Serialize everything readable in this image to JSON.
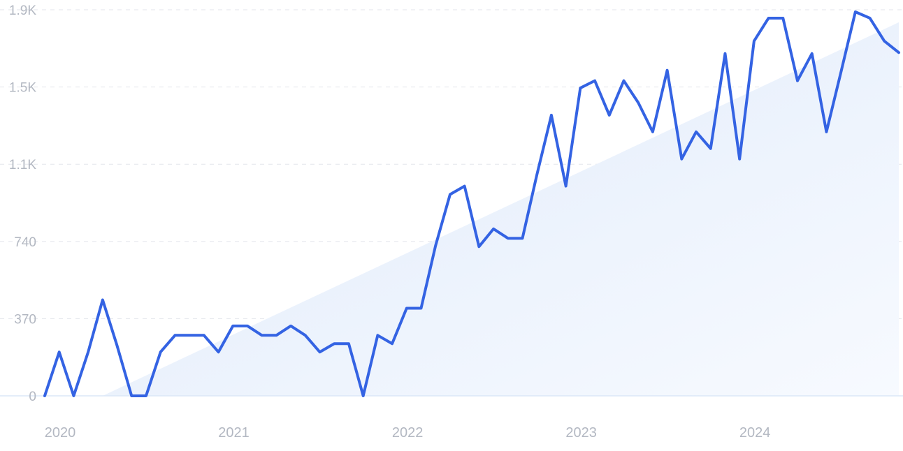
{
  "chart_data": {
    "type": "line",
    "title": "",
    "xlabel": "",
    "ylabel": "",
    "ylim": [
      0,
      1850
    ],
    "y_ticks": [
      {
        "value": 0,
        "label": "0"
      },
      {
        "value": 370,
        "label": "370"
      },
      {
        "value": 740,
        "label": "740"
      },
      {
        "value": 1110,
        "label": "1.1K"
      },
      {
        "value": 1480,
        "label": "1.5K"
      },
      {
        "value": 1850,
        "label": "1.9K"
      }
    ],
    "x_ticks": [
      "2020",
      "2021",
      "2022",
      "2023",
      "2024"
    ],
    "grid": "horizontal dashed",
    "x": [
      "2020-01",
      "2020-02",
      "2020-03",
      "2020-04",
      "2020-05",
      "2020-06",
      "2020-07",
      "2020-08",
      "2020-09",
      "2020-10",
      "2020-11",
      "2020-12",
      "2021-01",
      "2021-02",
      "2021-03",
      "2021-04",
      "2021-05",
      "2021-06",
      "2021-07",
      "2021-08",
      "2021-09",
      "2021-10",
      "2021-11",
      "2021-12",
      "2022-01",
      "2022-02",
      "2022-03",
      "2022-04",
      "2022-05",
      "2022-06",
      "2022-07",
      "2022-08",
      "2022-09",
      "2022-10",
      "2022-11",
      "2022-12",
      "2023-01",
      "2023-02",
      "2023-03",
      "2023-04",
      "2023-05",
      "2023-06",
      "2023-07",
      "2023-08",
      "2023-09",
      "2023-10",
      "2023-11",
      "2023-12",
      "2024-01",
      "2024-02",
      "2024-03",
      "2024-04",
      "2024-05",
      "2024-06",
      "2024-07",
      "2024-08",
      "2024-09",
      "2024-10",
      "2024-11",
      "2024-12"
    ],
    "series": [
      {
        "values": [
          0,
          210,
          0,
          210,
          460,
          240,
          0,
          0,
          210,
          290,
          290,
          290,
          210,
          335,
          335,
          290,
          290,
          335,
          290,
          210,
          250,
          250,
          0,
          290,
          250,
          420,
          420,
          720,
          965,
          1005,
          715,
          800,
          755,
          755,
          1060,
          1345,
          1005,
          1475,
          1510,
          1345,
          1510,
          1405,
          1265,
          1560,
          1135,
          1265,
          1185,
          1640,
          1135,
          1700,
          1810,
          1810,
          1510,
          1640,
          1265,
          1550,
          1840,
          1810,
          1700,
          1645
        ]
      }
    ],
    "trend": {
      "start": 0,
      "end": 1790
    },
    "colors": {
      "line": "#3463e3",
      "trend_fill": "#e7f0fc",
      "grid": "#e3e6eb",
      "tick": "#b3b8c2"
    }
  }
}
